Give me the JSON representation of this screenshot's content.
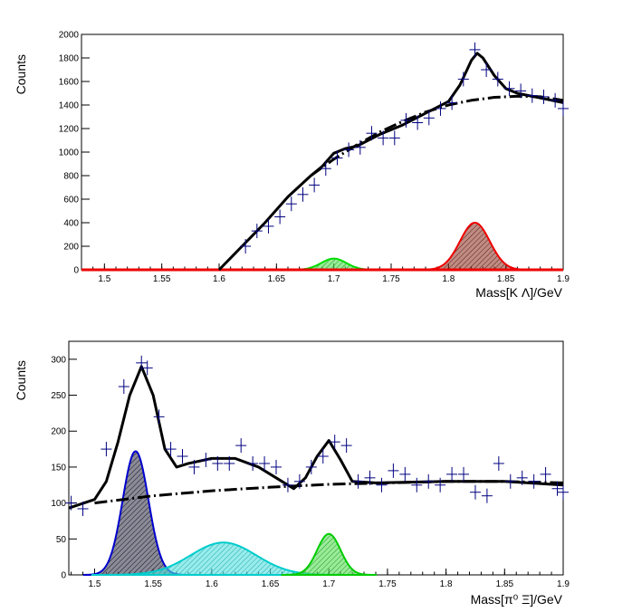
{
  "chart_data": [
    {
      "type": "line",
      "xlabel": "Mass[K Λ]/GeV",
      "ylabel": "Counts",
      "xlim": [
        1.48,
        1.9
      ],
      "ylim": [
        0,
        2000
      ],
      "x_ticks": [
        "1.5",
        "1.55",
        "1.6",
        "1.65",
        "1.7",
        "1.75",
        "1.8",
        "1.85",
        "1.9"
      ],
      "y_ticks": [
        "0",
        "200",
        "400",
        "600",
        "800",
        "1000",
        "1200",
        "1400",
        "1600",
        "1800",
        "2000"
      ],
      "colors": {
        "data": "#000080",
        "fit": "#000000",
        "background": "#000000",
        "peak1": "#00dd00",
        "peak2": "#ee0000",
        "baseline": "#ee0000"
      },
      "data_points": {
        "x": [
          1.623,
          1.633,
          1.643,
          1.653,
          1.663,
          1.673,
          1.683,
          1.693,
          1.703,
          1.713,
          1.723,
          1.733,
          1.743,
          1.753,
          1.763,
          1.773,
          1.783,
          1.793,
          1.803,
          1.813,
          1.823,
          1.833,
          1.843,
          1.853,
          1.863,
          1.873,
          1.883,
          1.893,
          1.9
        ],
        "y": [
          200,
          330,
          370,
          450,
          560,
          640,
          720,
          860,
          950,
          1020,
          1040,
          1160,
          1120,
          1120,
          1270,
          1250,
          1290,
          1370,
          1420,
          1620,
          1870,
          1700,
          1620,
          1540,
          1520,
          1480,
          1470,
          1440,
          1370
        ]
      },
      "series": [
        {
          "role": "total-fit",
          "x": [
            1.6,
            1.62,
            1.64,
            1.66,
            1.68,
            1.69,
            1.7,
            1.71,
            1.72,
            1.74,
            1.76,
            1.78,
            1.79,
            1.8,
            1.81,
            1.82,
            1.825,
            1.83,
            1.84,
            1.85,
            1.86,
            1.87,
            1.88,
            1.9
          ],
          "y": [
            0,
            200,
            400,
            620,
            800,
            880,
            990,
            1030,
            1050,
            1150,
            1230,
            1330,
            1380,
            1430,
            1570,
            1780,
            1840,
            1800,
            1650,
            1540,
            1500,
            1480,
            1460,
            1420
          ]
        },
        {
          "role": "background-fit",
          "x": [
            1.68,
            1.7,
            1.72,
            1.74,
            1.76,
            1.78,
            1.8,
            1.82,
            1.84,
            1.86,
            1.88,
            1.9
          ],
          "y": [
            800,
            940,
            1060,
            1170,
            1260,
            1340,
            1400,
            1440,
            1465,
            1475,
            1470,
            1440
          ]
        },
        {
          "role": "peak-1700",
          "mean": 1.7,
          "sigma": 0.011,
          "amplitude": 95
        },
        {
          "role": "peak-1823",
          "mean": 1.823,
          "sigma": 0.013,
          "amplitude": 400
        }
      ]
    },
    {
      "type": "line",
      "xlabel": "Mass[π⁰ Ξ]/GeV",
      "ylabel": "Counts",
      "xlim": [
        1.478,
        1.9
      ],
      "ylim": [
        0,
        325
      ],
      "x_ticks": [
        "1.5",
        "1.55",
        "1.6",
        "1.65",
        "1.7",
        "1.75",
        "1.8",
        "1.85",
        "1.9"
      ],
      "y_ticks": [
        "0",
        "50",
        "100",
        "150",
        "200",
        "250",
        "300"
      ],
      "colors": {
        "data": "#000080",
        "fit": "#000000",
        "background": "#000000",
        "peak1": "#0000cc",
        "peak2": "#00cccc",
        "peak3": "#00cc00"
      },
      "data_points": {
        "x": [
          1.48,
          1.49,
          1.51,
          1.525,
          1.54,
          1.545,
          1.555,
          1.565,
          1.575,
          1.585,
          1.595,
          1.605,
          1.615,
          1.625,
          1.635,
          1.645,
          1.655,
          1.665,
          1.675,
          1.685,
          1.695,
          1.705,
          1.715,
          1.725,
          1.735,
          1.745,
          1.755,
          1.765,
          1.775,
          1.785,
          1.795,
          1.805,
          1.815,
          1.825,
          1.835,
          1.845,
          1.855,
          1.865,
          1.875,
          1.885,
          1.895,
          1.9
        ],
        "y": [
          100,
          92,
          175,
          262,
          295,
          288,
          220,
          175,
          165,
          150,
          160,
          155,
          155,
          180,
          155,
          155,
          150,
          125,
          130,
          150,
          165,
          185,
          180,
          130,
          135,
          125,
          145,
          140,
          125,
          130,
          125,
          140,
          140,
          115,
          110,
          155,
          130,
          135,
          130,
          140,
          120,
          115
        ]
      },
      "series": [
        {
          "role": "total-fit",
          "x": [
            1.478,
            1.5,
            1.51,
            1.52,
            1.53,
            1.54,
            1.55,
            1.56,
            1.57,
            1.58,
            1.6,
            1.62,
            1.64,
            1.66,
            1.67,
            1.68,
            1.69,
            1.7,
            1.71,
            1.72,
            1.74,
            1.8,
            1.85,
            1.9
          ],
          "y": [
            93,
            105,
            130,
            185,
            250,
            290,
            250,
            175,
            150,
            155,
            162,
            162,
            150,
            130,
            120,
            135,
            165,
            187,
            160,
            130,
            128,
            130,
            130,
            125
          ]
        },
        {
          "role": "background-fit",
          "x": [
            1.5,
            1.55,
            1.6,
            1.65,
            1.7,
            1.75,
            1.8,
            1.85,
            1.9
          ],
          "y": [
            100,
            110,
            117,
            122,
            126,
            128,
            130,
            130,
            128
          ]
        },
        {
          "role": "peak-1535",
          "mean": 1.535,
          "sigma": 0.011,
          "amplitude": 172
        },
        {
          "role": "peak-1610",
          "mean": 1.61,
          "sigma": 0.028,
          "amplitude": 45
        },
        {
          "role": "peak-1700",
          "mean": 1.7,
          "sigma": 0.01,
          "amplitude": 57
        }
      ]
    }
  ]
}
